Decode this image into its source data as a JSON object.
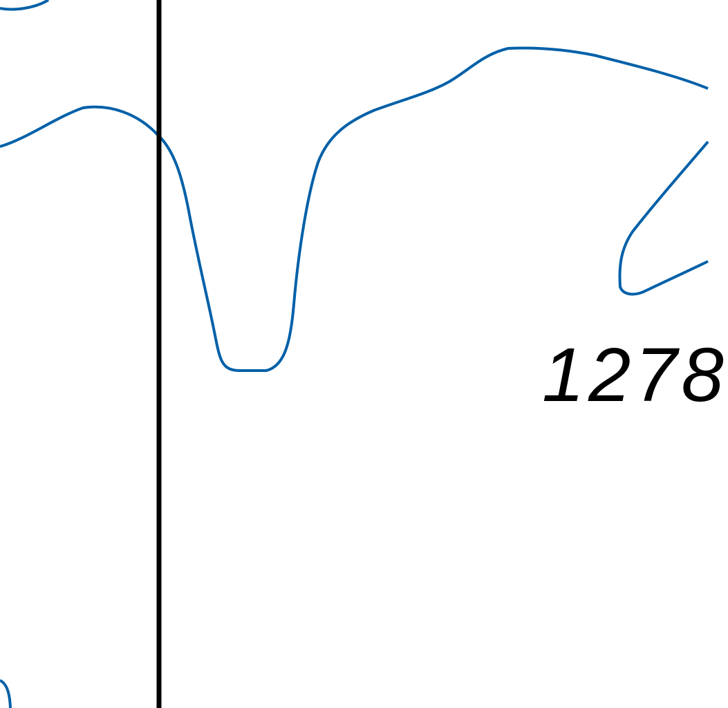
{
  "map": {
    "colors": {
      "background": "#ffffff",
      "contour": "#0060a8",
      "boundary": "#000000",
      "label": "#000000"
    },
    "labels": {
      "elevation": "1278"
    }
  }
}
